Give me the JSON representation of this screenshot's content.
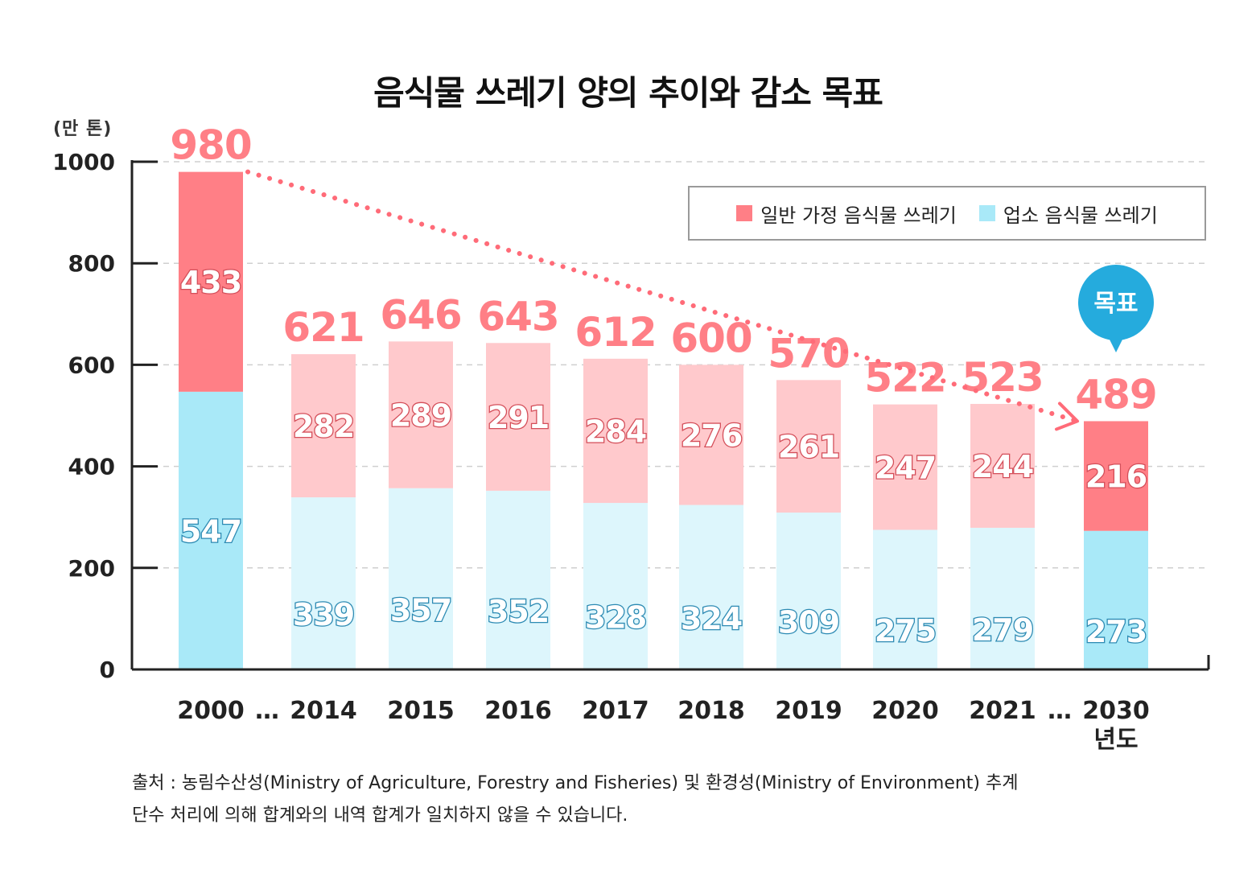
{
  "chart_data": {
    "type": "bar",
    "stacked": true,
    "title": "음식물 쓰레기 양의 추이와 감소 목표",
    "ylabel": "(만 톤)",
    "xlabel": "년도",
    "ylim": [
      0,
      1000
    ],
    "yticks": [
      0,
      200,
      400,
      600,
      800,
      1000
    ],
    "grid": true,
    "legend_position": "top-right",
    "categories": [
      "2000",
      "2014",
      "2015",
      "2016",
      "2017",
      "2018",
      "2019",
      "2020",
      "2021",
      "2030"
    ],
    "series": [
      {
        "name": "업소 음식물 쓰레기",
        "values": [
          547,
          339,
          357,
          352,
          328,
          324,
          309,
          275,
          279,
          273
        ]
      },
      {
        "name": "일반 가정 음식물 쓰레기",
        "values": [
          433,
          282,
          289,
          291,
          284,
          276,
          261,
          247,
          244,
          216
        ]
      }
    ],
    "totals": [
      980,
      621,
      646,
      643,
      612,
      600,
      570,
      522,
      523,
      489
    ],
    "ellipsis": "…",
    "annotations": {
      "target_badge": "목표",
      "target_category": "2030"
    },
    "colors": {
      "household_strong": "#FF7F86",
      "household_light": "#FFC9CC",
      "business_strong": "#A9E9F8",
      "business_light": "#DDF6FC",
      "total_label": "#FF7F86",
      "business_label_stroke": "#2C8AB3",
      "household_label_stroke": "#D44E59",
      "badge": "#25ABDD",
      "axis": "#222222",
      "grid": "#cfcfcf",
      "trend": "#FF6B78"
    }
  },
  "legend": {
    "household": "일반 가정 음식물 쓰레기",
    "business": "업소 음식물 쓰레기"
  },
  "source": {
    "line1": "출처 : 농림수산성(Ministry of Agriculture, Forestry and Fisheries) 및 환경성(Ministry of Environment) 추계",
    "line2": "단수 처리에 의해 합계와의 내역 합계가 일치하지 않을 수 있습니다."
  }
}
